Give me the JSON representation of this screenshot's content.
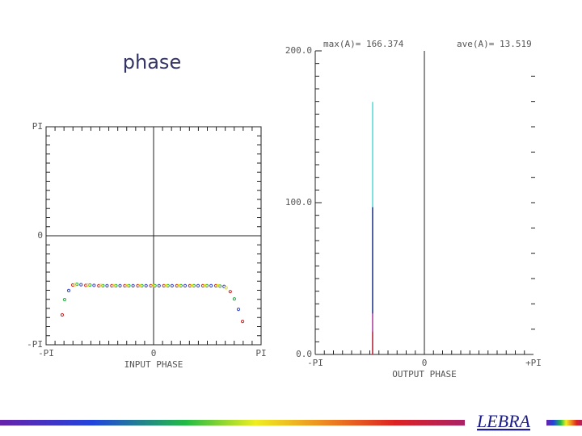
{
  "title": "phase",
  "footer": "LEBRA",
  "chart_data": [
    {
      "type": "scatter",
      "xlabel": "INPUT PHASE",
      "xlim": [
        -3.1416,
        3.1416
      ],
      "ylim": [
        -3.1416,
        3.1416
      ],
      "xticks": [
        {
          "value": -3.1416,
          "label": "-PI"
        },
        0,
        {
          "value": 3.1416,
          "label": "PI"
        }
      ],
      "yticks": [
        {
          "value": 3.1416,
          "label": "PI"
        },
        0,
        {
          "value": -3.1416,
          "label": "-PI"
        }
      ],
      "series": [
        {
          "color": "#cc2222",
          "x": [
            -2.67,
            -2.36,
            -1.98,
            -1.6,
            -1.22,
            -0.84,
            -0.46,
            -0.08,
            0.3,
            0.68,
            1.06,
            1.44,
            1.82,
            2.24,
            2.6
          ],
          "values": [
            -2.28,
            -1.42,
            -1.43,
            -1.44,
            -1.44,
            -1.44,
            -1.44,
            -1.44,
            -1.44,
            -1.44,
            -1.44,
            -1.44,
            -1.44,
            -1.61,
            -2.47
          ]
        },
        {
          "color": "#22aa44",
          "x": [
            -2.6,
            -2.24,
            -1.86,
            -1.48,
            -1.1,
            -0.72,
            -0.34,
            0.04,
            0.42,
            0.8,
            1.18,
            1.56,
            1.94,
            2.36
          ],
          "values": [
            -1.84,
            -1.4,
            -1.42,
            -1.44,
            -1.44,
            -1.44,
            -1.44,
            -1.44,
            -1.44,
            -1.44,
            -1.44,
            -1.44,
            -1.45,
            -1.82
          ]
        },
        {
          "color": "#3344cc",
          "x": [
            -2.48,
            -2.12,
            -1.74,
            -1.36,
            -0.98,
            -0.6,
            -0.22,
            0.16,
            0.54,
            0.92,
            1.3,
            1.68,
            2.06,
            2.48
          ],
          "values": [
            -1.58,
            -1.41,
            -1.43,
            -1.44,
            -1.44,
            -1.44,
            -1.44,
            -1.44,
            -1.44,
            -1.44,
            -1.44,
            -1.44,
            -1.46,
            -2.12
          ]
        },
        {
          "color": "#dddd22",
          "x": [
            -2.3,
            -1.92,
            -1.54,
            -1.16,
            -0.78,
            -0.4,
            -0.02,
            0.36,
            0.74,
            1.12,
            1.5,
            1.88,
            2.12
          ],
          "values": [
            -1.41,
            -1.42,
            -1.43,
            -1.44,
            -1.44,
            -1.44,
            -1.44,
            -1.44,
            -1.44,
            -1.44,
            -1.44,
            -1.44,
            -1.5
          ]
        }
      ]
    },
    {
      "type": "spike",
      "xlabel": "OUTPUT PHASE",
      "annotations": [
        "max(A)= 166.374",
        "ave(A)= 13.519"
      ],
      "xlim": [
        -3.1416,
        3.1416
      ],
      "ylim": [
        0,
        200
      ],
      "xticks": [
        {
          "value": -3.1416,
          "label": "-PI"
        },
        0,
        {
          "value": 3.1416,
          "label": "+PI"
        }
      ],
      "yticks": [
        {
          "value": 0,
          "label": "0.0"
        },
        {
          "value": 100,
          "label": "100.0"
        },
        {
          "value": 200,
          "label": "200.0"
        }
      ],
      "series": [
        {
          "color": "#33cccc",
          "x": [
            -1.49
          ],
          "values": [
            166.374
          ]
        },
        {
          "color": "#000066",
          "x": [
            -1.49
          ],
          "values": [
            97
          ]
        },
        {
          "color": "#cc3399",
          "x": [
            -1.49
          ],
          "values": [
            27
          ]
        },
        {
          "color": "#cc2222",
          "x": [
            -1.49
          ],
          "values": [
            15
          ]
        }
      ]
    }
  ]
}
